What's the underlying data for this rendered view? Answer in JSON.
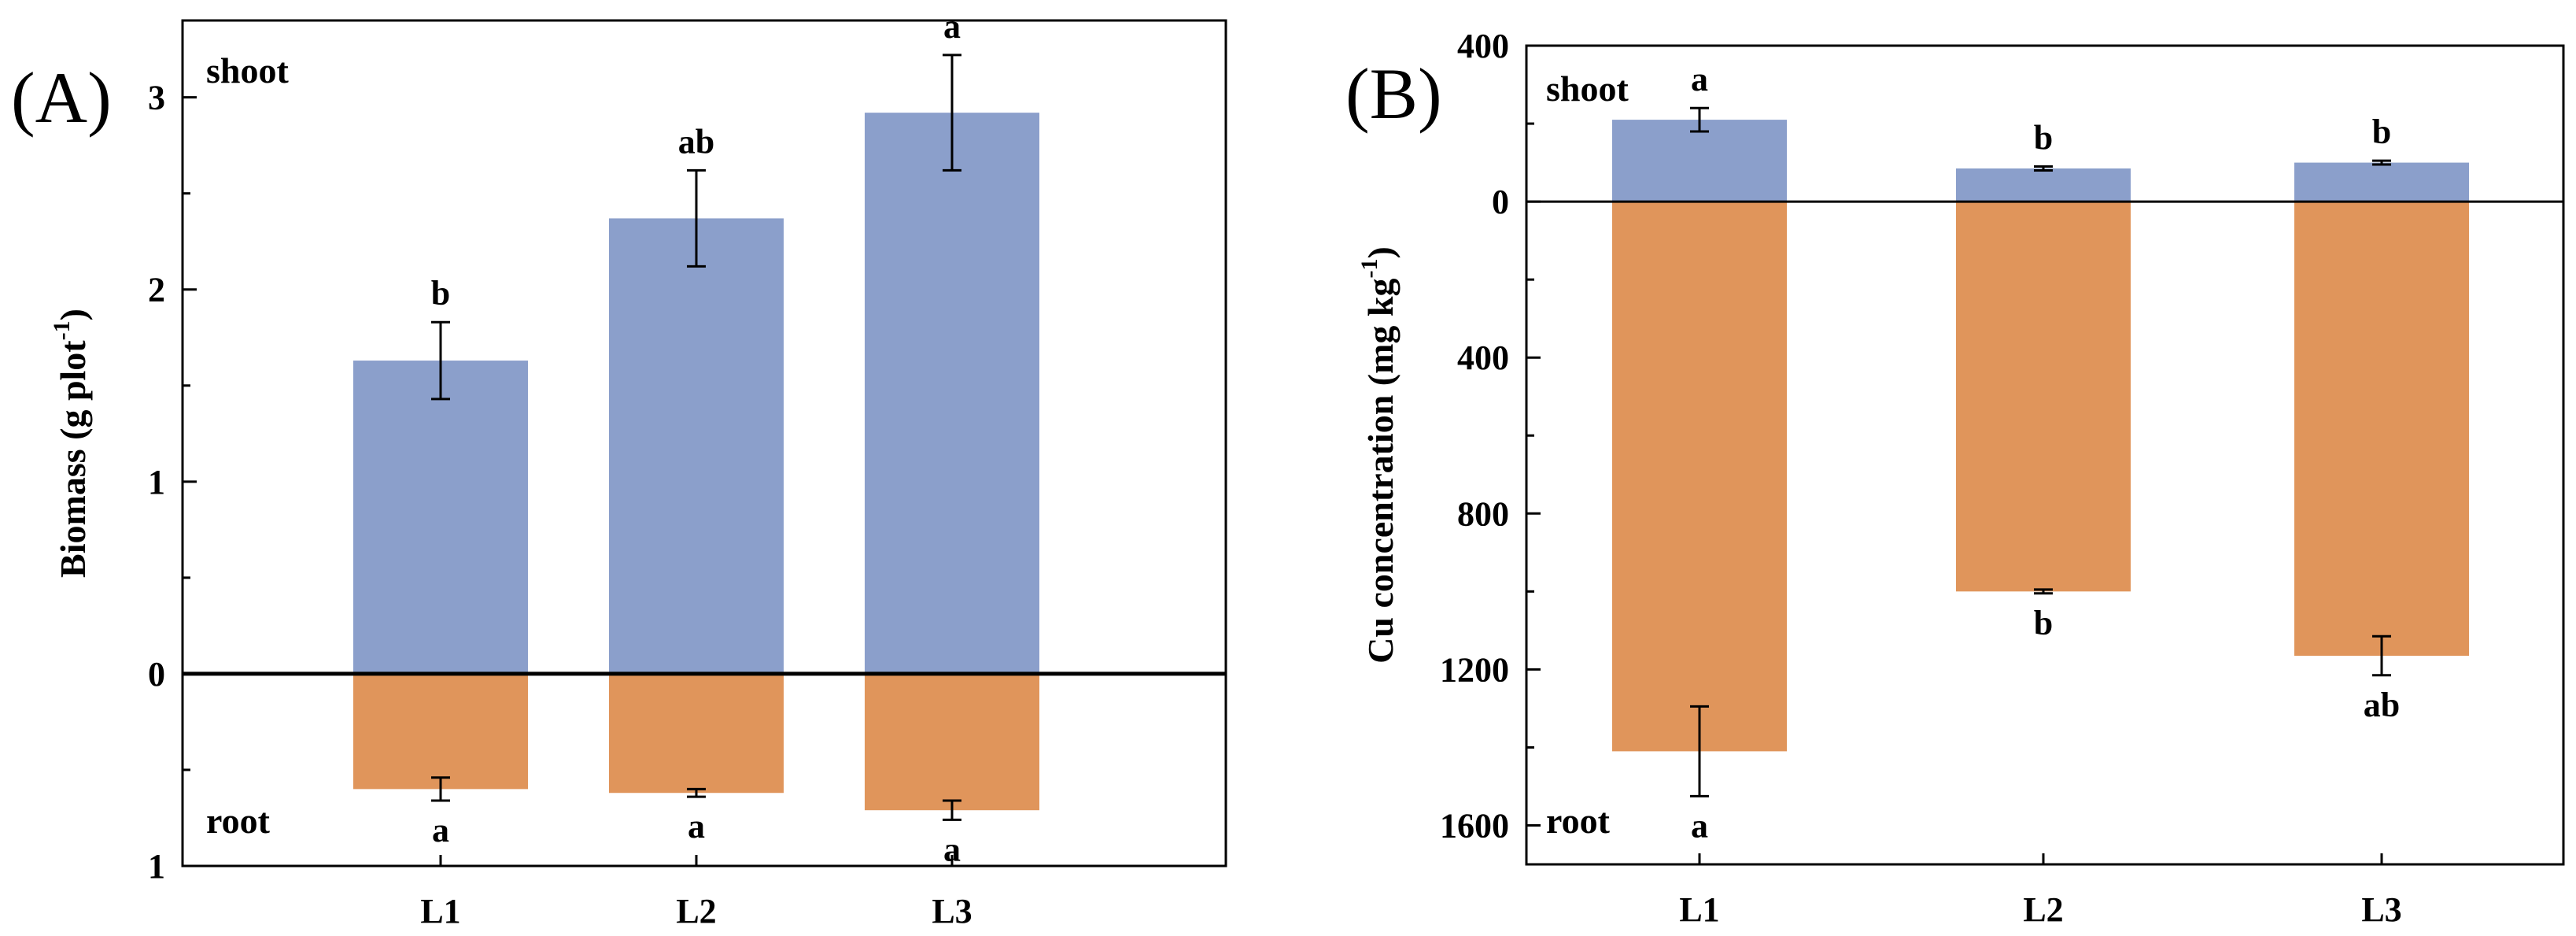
{
  "chart_data": [
    {
      "type": "bar",
      "panel_label": "(A)",
      "categories": [
        "L1",
        "L2",
        "L3"
      ],
      "ylabel_main": "Biomass (g plot",
      "ylabel_sup": "-1",
      "ylabel_end": ")",
      "ylim": [
        -1,
        3.4
      ],
      "yticks": [
        -1,
        0,
        1,
        2,
        3
      ],
      "ytick_labels": [
        "1",
        "0",
        "1",
        "2",
        "3"
      ],
      "top_label": "shoot",
      "bottom_label": "root",
      "colors": {
        "shoot": "#8b9fcb",
        "root": "#e0955b"
      },
      "series": [
        {
          "name": "shoot",
          "values": [
            1.63,
            2.37,
            2.92
          ],
          "errors": [
            0.2,
            0.25,
            0.3
          ],
          "significance": [
            "b",
            "ab",
            "a"
          ]
        },
        {
          "name": "root",
          "values": [
            0.6,
            0.62,
            0.71
          ],
          "errors": [
            0.06,
            0.02,
            0.05
          ],
          "significance": [
            "a",
            "a",
            "a"
          ]
        }
      ]
    },
    {
      "type": "bar",
      "panel_label": "(B)",
      "categories": [
        "L1",
        "L2",
        "L3"
      ],
      "ylabel_main": "Cu concentration (mg kg",
      "ylabel_sup": "-1",
      "ylabel_end": ")",
      "ylim": [
        -1700,
        400
      ],
      "yticks": [
        -1600,
        -1200,
        -800,
        -400,
        0,
        400
      ],
      "ytick_labels": [
        "1600",
        "1200",
        "800",
        "400",
        "0",
        "400"
      ],
      "top_label": "shoot",
      "bottom_label": "root",
      "colors": {
        "shoot": "#8b9fcb",
        "root": "#e0955b"
      },
      "series": [
        {
          "name": "shoot",
          "values": [
            210,
            85,
            100
          ],
          "errors": [
            30,
            5,
            5
          ],
          "significance": [
            "a",
            "b",
            "b"
          ]
        },
        {
          "name": "root",
          "values": [
            1410,
            1000,
            1165
          ],
          "errors": [
            115,
            5,
            50
          ],
          "significance": [
            "a",
            "b",
            "ab"
          ]
        }
      ]
    }
  ]
}
